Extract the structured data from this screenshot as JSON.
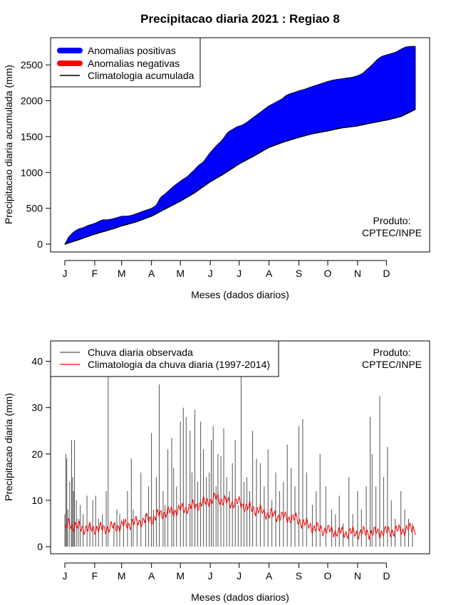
{
  "figure_title": "Precipitacao diaria 2021 : Regiao 8",
  "chart_data": [
    {
      "type": "area",
      "xlabel": "Meses (dados diarios)",
      "ylabel": "Precipitacao diaria acumulada (mm)",
      "categories": [
        "J",
        "F",
        "M",
        "A",
        "M",
        "J",
        "J",
        "A",
        "S",
        "O",
        "N",
        "D"
      ],
      "x_unit": "day of year",
      "xlim": [
        1,
        365
      ],
      "ylim": [
        0,
        2750
      ],
      "yticks": [
        0,
        500,
        1000,
        1500,
        2000,
        2500
      ],
      "legend_position": "top-left",
      "note_lines": [
        "Produto:",
        "CPTEC/INPE"
      ],
      "series": [
        {
          "name": "Climatologia acumulada",
          "role": "line",
          "color": "#000000",
          "x": [
            1,
            15,
            32,
            50,
            60,
            75,
            91,
            105,
            121,
            135,
            152,
            166,
            182,
            196,
            213,
            227,
            244,
            258,
            274,
            288,
            305,
            319,
            335,
            350,
            365
          ],
          "values": [
            0,
            60,
            140,
            210,
            255,
            310,
            390,
            490,
            600,
            710,
            870,
            980,
            1120,
            1220,
            1350,
            1420,
            1490,
            1540,
            1580,
            1620,
            1650,
            1690,
            1730,
            1780,
            1880
          ]
        },
        {
          "name": "Observado acumulado",
          "role": "area-top",
          "x": [
            1,
            5,
            10,
            15,
            20,
            25,
            32,
            40,
            45,
            50,
            55,
            60,
            65,
            70,
            80,
            91,
            96,
            100,
            105,
            110,
            115,
            121,
            128,
            135,
            140,
            145,
            152,
            158,
            162,
            166,
            170,
            175,
            180,
            185,
            190,
            196,
            200,
            205,
            213,
            220,
            227,
            230,
            235,
            240,
            244,
            250,
            258,
            265,
            274,
            280,
            285,
            290,
            300,
            305,
            310,
            315,
            320,
            325,
            330,
            335,
            340,
            345,
            350,
            355,
            360,
            365
          ],
          "values": [
            0,
            100,
            170,
            210,
            230,
            260,
            290,
            340,
            340,
            350,
            370,
            390,
            390,
            400,
            450,
            500,
            540,
            650,
            700,
            760,
            820,
            880,
            940,
            1030,
            1100,
            1150,
            1280,
            1370,
            1420,
            1480,
            1560,
            1600,
            1640,
            1660,
            1700,
            1760,
            1800,
            1850,
            1930,
            1980,
            2030,
            2070,
            2100,
            2120,
            2140,
            2160,
            2200,
            2230,
            2270,
            2290,
            2300,
            2310,
            2330,
            2350,
            2380,
            2440,
            2500,
            2570,
            2620,
            2640,
            2660,
            2680,
            2720,
            2750,
            2760,
            2760
          ]
        }
      ],
      "legend": [
        {
          "label": "Anomalias positivas",
          "color": "#0000ff"
        },
        {
          "label": "Anomalias negativas",
          "color": "#ff0000"
        },
        {
          "label": "Climatologia acumulada",
          "color": "#000000"
        }
      ]
    },
    {
      "type": "bar",
      "xlabel": "Meses (dados diarios)",
      "ylabel": "Precipitacao diaria (mm)",
      "categories": [
        "J",
        "F",
        "M",
        "A",
        "M",
        "J",
        "J",
        "A",
        "S",
        "O",
        "N",
        "D"
      ],
      "x_unit": "day of year",
      "xlim": [
        1,
        365
      ],
      "ylim": [
        0,
        45
      ],
      "yticks": [
        0,
        10,
        20,
        30,
        40
      ],
      "legend_position": "top-left",
      "note_lines": [
        "Produto:",
        "CPTEC/INPE"
      ],
      "series": [
        {
          "name": "Chuva diaria observada",
          "role": "bars",
          "color": "#555555",
          "x": [
            1,
            2,
            3,
            4,
            6,
            8,
            9,
            10,
            11,
            13,
            15,
            17,
            20,
            24,
            27,
            30,
            33,
            36,
            40,
            44,
            46,
            52,
            55,
            58,
            62,
            66,
            70,
            72,
            76,
            80,
            85,
            88,
            91,
            93,
            96,
            99,
            103,
            105,
            108,
            112,
            114,
            117,
            121,
            124,
            127,
            131,
            133,
            136,
            139,
            142,
            145,
            148,
            151,
            153,
            155,
            158,
            160,
            163,
            166,
            169,
            172,
            175,
            178,
            181,
            184,
            187,
            190,
            193,
            196,
            200,
            204,
            208,
            212,
            216,
            220,
            224,
            228,
            232,
            236,
            240,
            244,
            248,
            252,
            258,
            262,
            266,
            272,
            278,
            282,
            286,
            290,
            296,
            300,
            305,
            309,
            314,
            318,
            320,
            324,
            328,
            332,
            336,
            340,
            344,
            350,
            354,
            358,
            362
          ],
          "values": [
            7,
            20,
            19,
            8,
            14,
            23,
            15,
            12,
            23,
            10,
            6,
            9,
            7,
            11,
            5,
            10,
            11,
            6,
            7,
            12,
            45,
            5,
            8,
            7,
            6,
            12,
            19,
            8,
            6,
            16,
            7,
            13,
            24.5,
            8,
            15,
            35,
            12,
            9,
            21,
            23.5,
            17,
            13,
            27,
            30,
            28,
            25,
            16,
            29.5,
            14,
            27,
            21,
            15,
            16,
            23,
            26,
            13,
            20,
            19.5,
            25.5,
            15,
            12,
            18,
            23,
            9,
            45,
            14,
            15,
            12,
            25,
            19,
            18,
            13,
            21,
            10,
            16,
            12,
            14,
            22,
            17,
            13,
            26,
            27.5,
            16,
            9,
            12,
            20,
            13,
            8,
            7,
            11,
            5,
            15,
            7,
            12,
            8,
            13,
            28,
            20,
            13,
            32.5,
            15,
            21.5,
            10,
            6,
            12,
            8,
            6,
            5
          ]
        },
        {
          "name": "Climatologia da chuva diaria (1997-2014)",
          "role": "line",
          "color": "#ff0000",
          "x": [
            1,
            5,
            10,
            15,
            20,
            25,
            32,
            40,
            50,
            60,
            70,
            80,
            91,
            100,
            110,
            121,
            130,
            140,
            152,
            160,
            170,
            182,
            190,
            200,
            213,
            225,
            240,
            250,
            260,
            274,
            290,
            305,
            320,
            335,
            350,
            365
          ],
          "values": [
            3.5,
            5,
            4.5,
            4.2,
            4,
            3.8,
            4,
            3.8,
            4.2,
            4.5,
            5,
            5.5,
            6,
            7,
            7.5,
            8,
            8.5,
            9,
            10,
            10.5,
            9.5,
            9.5,
            8.5,
            8,
            7,
            6.5,
            6,
            5,
            4,
            3.5,
            3,
            3,
            3,
            3.2,
            3.5,
            4
          ]
        }
      ],
      "legend": [
        {
          "label": "Chuva diaria observada",
          "color": "#555555"
        },
        {
          "label": "Climatologia da chuva diaria (1997-2014)",
          "color": "#ff0000"
        }
      ]
    }
  ]
}
